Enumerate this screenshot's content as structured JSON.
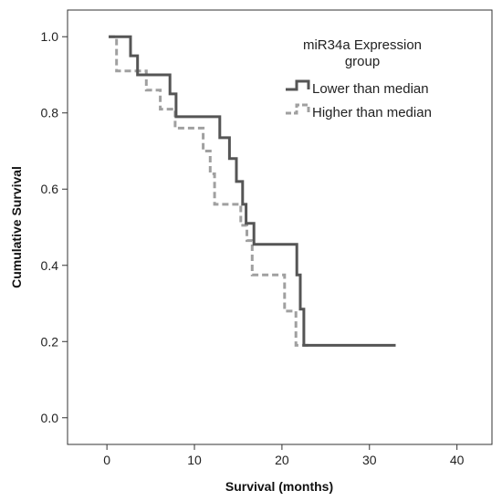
{
  "chart_data": {
    "type": "line",
    "subtype": "kaplan-meier step curve",
    "title": "",
    "xlabel": "Survival (months)",
    "ylabel": "Cumulative Survival",
    "xlim": [
      -4.5,
      44
    ],
    "ylim": [
      -0.07,
      1.07
    ],
    "xticks": [
      0,
      10,
      20,
      30,
      40
    ],
    "yticks": [
      0.0,
      0.2,
      0.4,
      0.6,
      0.8,
      1.0
    ],
    "xtick_labels": [
      "0",
      "10",
      "20",
      "30",
      "40"
    ],
    "ytick_labels": [
      "0.0",
      "0.2",
      "0.4",
      "0.6",
      "0.8",
      "1.0"
    ],
    "grid": false,
    "legend": {
      "title_line1": "miR34a Expression",
      "title_line2": "group",
      "placement": "top-right"
    },
    "series": [
      {
        "name": "Lower than median",
        "color": "#555555",
        "style": "solid",
        "points": [
          [
            0.2,
            1.0
          ],
          [
            2.7,
            1.0
          ],
          [
            2.7,
            0.95
          ],
          [
            3.5,
            0.95
          ],
          [
            3.5,
            0.9
          ],
          [
            7.2,
            0.9
          ],
          [
            7.2,
            0.85
          ],
          [
            7.9,
            0.85
          ],
          [
            7.9,
            0.79
          ],
          [
            12.9,
            0.79
          ],
          [
            12.9,
            0.735
          ],
          [
            14.0,
            0.735
          ],
          [
            14.0,
            0.68
          ],
          [
            14.8,
            0.68
          ],
          [
            14.8,
            0.62
          ],
          [
            15.5,
            0.62
          ],
          [
            15.5,
            0.56
          ],
          [
            15.9,
            0.56
          ],
          [
            15.9,
            0.51
          ],
          [
            16.8,
            0.51
          ],
          [
            16.8,
            0.455
          ],
          [
            21.7,
            0.455
          ],
          [
            21.7,
            0.375
          ],
          [
            22.1,
            0.375
          ],
          [
            22.1,
            0.285
          ],
          [
            22.5,
            0.285
          ],
          [
            22.5,
            0.19
          ],
          [
            33.0,
            0.19
          ]
        ]
      },
      {
        "name": "Higher than median",
        "color": "#a0a0a0",
        "style": "dashed",
        "points": [
          [
            0.2,
            1.0
          ],
          [
            1.1,
            1.0
          ],
          [
            1.1,
            0.91
          ],
          [
            4.5,
            0.91
          ],
          [
            4.5,
            0.86
          ],
          [
            6.1,
            0.86
          ],
          [
            6.1,
            0.81
          ],
          [
            7.8,
            0.81
          ],
          [
            7.8,
            0.76
          ],
          [
            11.0,
            0.76
          ],
          [
            11.0,
            0.7
          ],
          [
            11.8,
            0.7
          ],
          [
            11.8,
            0.64
          ],
          [
            12.3,
            0.64
          ],
          [
            12.3,
            0.56
          ],
          [
            15.3,
            0.56
          ],
          [
            15.3,
            0.505
          ],
          [
            16.0,
            0.505
          ],
          [
            16.0,
            0.465
          ],
          [
            16.6,
            0.465
          ],
          [
            16.6,
            0.375
          ],
          [
            20.3,
            0.375
          ],
          [
            20.3,
            0.28
          ],
          [
            21.6,
            0.28
          ],
          [
            21.6,
            0.19
          ],
          [
            23.0,
            0.19
          ]
        ]
      }
    ]
  }
}
